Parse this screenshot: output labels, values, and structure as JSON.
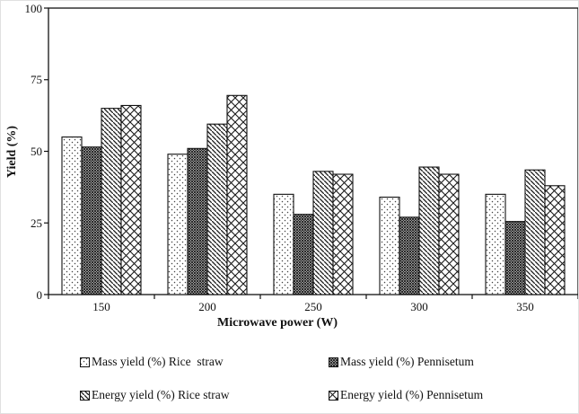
{
  "chart_data": {
    "type": "bar",
    "title": "",
    "xlabel": "Microwave power (W)",
    "ylabel": "Yield (%)",
    "ylim": [
      0,
      100
    ],
    "yticks": [
      0,
      25,
      50,
      75,
      100
    ],
    "categories": [
      "150",
      "200",
      "250",
      "300",
      "350"
    ],
    "series": [
      {
        "name": "Mass yield (%) Rice  straw",
        "pattern": "dots",
        "values": [
          55,
          49,
          35,
          34,
          35
        ]
      },
      {
        "name": "Mass yield (%) Pennisetum",
        "pattern": "dense-crosshatch",
        "values": [
          51.5,
          51,
          28,
          27,
          25.5
        ]
      },
      {
        "name": "Energy yield (%) Rice straw",
        "pattern": "diagonal-stripes",
        "values": [
          65,
          59.5,
          43,
          44.5,
          43.5
        ]
      },
      {
        "name": "Energy yield (%) Pennisetum",
        "pattern": "diamond-crosshatch",
        "values": [
          66,
          69.5,
          42,
          42,
          38
        ]
      }
    ],
    "legend_position": "bottom",
    "grid": "off",
    "axis_color": "#111111",
    "bar_outline_color": "#111111",
    "bar_fill_background": "#ffffff"
  }
}
